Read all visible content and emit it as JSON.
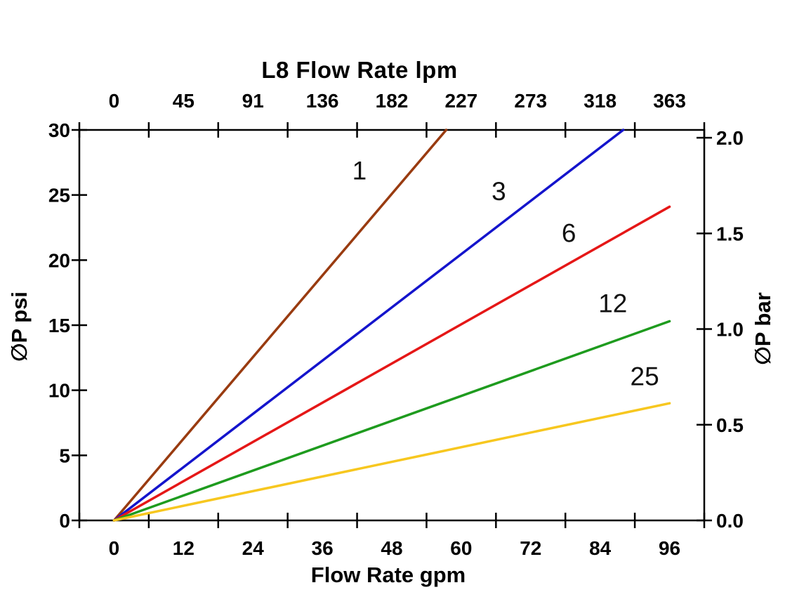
{
  "title": "L8 Flow Rate lpm",
  "axes": {
    "top": {
      "ticks": [
        "0",
        "45",
        "91",
        "136",
        "182",
        "227",
        "273",
        "318",
        "363"
      ]
    },
    "bottom": {
      "label": "Flow Rate gpm",
      "ticks": [
        "0",
        "12",
        "24",
        "36",
        "48",
        "60",
        "72",
        "84",
        "96"
      ]
    },
    "left": {
      "label": "∅P psi",
      "ticks": [
        "30",
        "25",
        "20",
        "15",
        "10",
        "5",
        "0"
      ]
    },
    "right": {
      "label": "∅P bar",
      "ticks": [
        "2.0",
        "1.5",
        "1.0",
        "0.5",
        "0.0"
      ]
    }
  },
  "chart_data": {
    "type": "line",
    "title": "L8 Flow Rate lpm",
    "xlabel": "Flow Rate gpm",
    "x2label": "L8 Flow Rate lpm",
    "ylabel_left": "∅P psi",
    "ylabel_right": "∅P bar",
    "xlim_gpm": [
      0,
      96
    ],
    "ylim_psi": [
      0,
      30
    ],
    "ylim_bar": [
      0,
      2.0
    ],
    "x_ticks_gpm": [
      0,
      12,
      24,
      36,
      48,
      60,
      72,
      84,
      96
    ],
    "x_ticks_lpm": [
      0,
      45,
      91,
      136,
      182,
      227,
      273,
      318,
      363
    ],
    "y_ticks_psi": [
      30,
      25,
      20,
      15,
      10,
      5,
      0
    ],
    "y_ticks_bar": [
      2.0,
      1.5,
      1.0,
      0.5,
      0.0
    ],
    "psi_per_bar": 14.7,
    "grid": false,
    "legend": "inline-labels",
    "axis_color": "#000000",
    "series": [
      {
        "name": "1",
        "color": "#993B10",
        "points_gpm_psi": [
          [
            0,
            0
          ],
          [
            57.4,
            30
          ]
        ],
        "label_at_gpm_psi": [
          42.4,
          26.9
        ]
      },
      {
        "name": "3",
        "color": "#1414CC",
        "points_gpm_psi": [
          [
            0,
            0
          ],
          [
            88.0,
            30
          ]
        ],
        "label_at_gpm_psi": [
          66.5,
          25.3
        ]
      },
      {
        "name": "6",
        "color": "#E51717",
        "points_gpm_psi": [
          [
            0,
            0
          ],
          [
            96,
            24.1
          ]
        ],
        "label_at_gpm_psi": [
          78.6,
          22.1
        ]
      },
      {
        "name": "12",
        "color": "#1E9B1E",
        "points_gpm_psi": [
          [
            0,
            0
          ],
          [
            96,
            15.3
          ]
        ],
        "label_at_gpm_psi": [
          86.2,
          16.7
        ]
      },
      {
        "name": "25",
        "color": "#F7C71F",
        "points_gpm_psi": [
          [
            0,
            0
          ],
          [
            96,
            9.0
          ]
        ],
        "label_at_gpm_psi": [
          91.7,
          11.1
        ]
      }
    ]
  }
}
